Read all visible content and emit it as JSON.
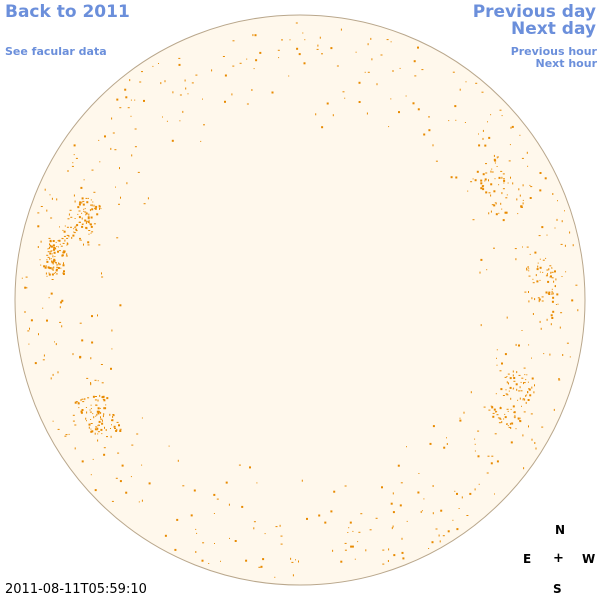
{
  "nav": {
    "back_label": "Back to 2011",
    "facular_label": "See facular data",
    "prev_day_label": "Previous day",
    "next_day_label": "Next day",
    "prev_hour_label": "Previous hour",
    "next_hour_label": "Next hour"
  },
  "timestamp": "2011-08-11T05:59:10",
  "compass": {
    "north": "N",
    "east": "E",
    "center": "+",
    "west": "W",
    "south": "S"
  },
  "colors": {
    "link": "#6b8fdb",
    "disk_fill": "#fff8ec",
    "disk_edge": "#b9a78c",
    "facula": "#e88a00"
  },
  "solar_disk": {
    "regions": [
      {
        "name": "east-limb-upper",
        "angle_deg": 200,
        "r_frac": 0.82,
        "spread": 0.1,
        "density": "high"
      },
      {
        "name": "east-limb-mid",
        "angle_deg": 190,
        "r_frac": 0.87,
        "spread": 0.07,
        "density": "high"
      },
      {
        "name": "east-limb-lower",
        "angle_deg": 150,
        "r_frac": 0.82,
        "spread": 0.1,
        "density": "high"
      },
      {
        "name": "west-limb-lower",
        "angle_deg": 25,
        "r_frac": 0.82,
        "spread": 0.12,
        "density": "high"
      },
      {
        "name": "west-limb-mid",
        "angle_deg": 355,
        "r_frac": 0.85,
        "spread": 0.1,
        "density": "medium"
      },
      {
        "name": "west-limb-upper",
        "angle_deg": 330,
        "r_frac": 0.8,
        "spread": 0.12,
        "density": "medium"
      }
    ]
  }
}
